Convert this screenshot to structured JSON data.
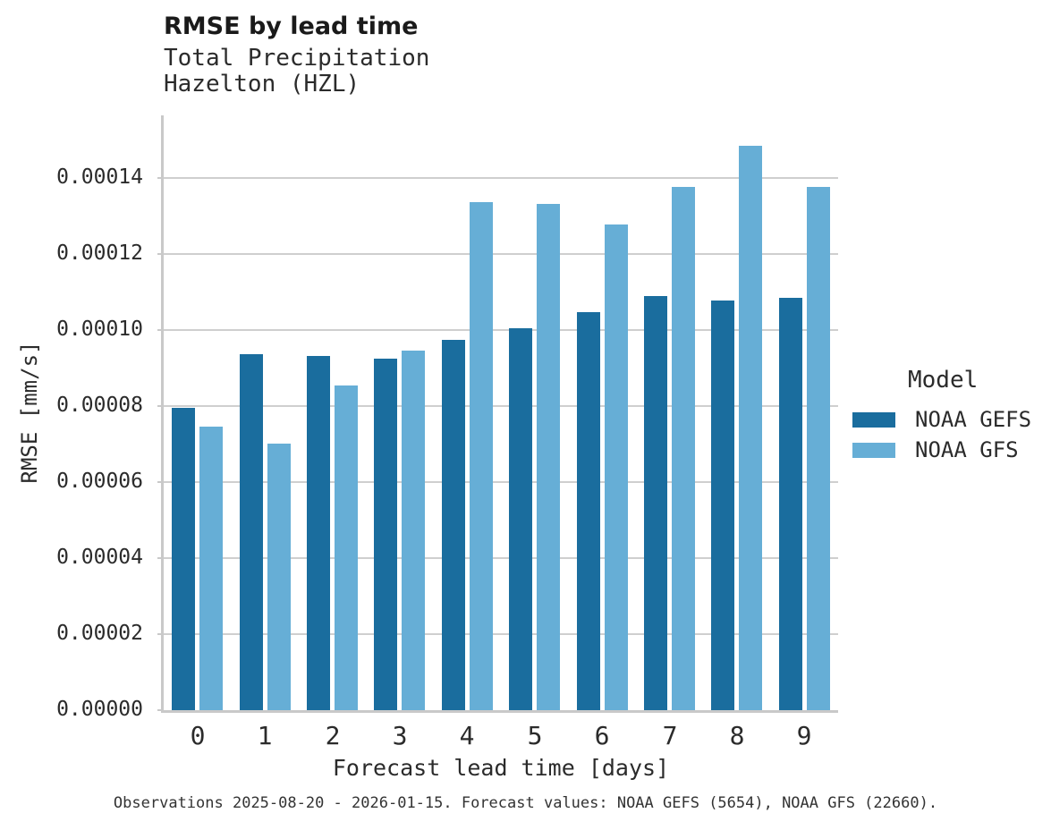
{
  "header": {
    "title": "RMSE by lead time",
    "subtitle_line1": "Total Precipitation",
    "subtitle_line2": "Hazelton (HZL)"
  },
  "legend": {
    "title": "Model",
    "items": [
      {
        "label": "NOAA GEFS",
        "color": "#1a6d9e"
      },
      {
        "label": "NOAA GFS",
        "color": "#66aed6"
      }
    ]
  },
  "footer": {
    "note": "Observations 2025-08-20 - 2026-01-15. Forecast values: NOAA GEFS (5654), NOAA GFS (22660)."
  },
  "chart_data": {
    "type": "bar",
    "title": "RMSE by lead time",
    "subtitle": "Total Precipitation",
    "station": "Hazelton (HZL)",
    "xlabel": "Forecast lead time [days]",
    "ylabel": "RMSE [mm/s]",
    "categories": [
      "0",
      "1",
      "2",
      "3",
      "4",
      "5",
      "6",
      "7",
      "8",
      "9"
    ],
    "series": [
      {
        "name": "NOAA GEFS",
        "color": "#1a6d9e",
        "values": [
          7.95e-05,
          9.37e-05,
          9.32e-05,
          9.24e-05,
          9.74e-05,
          0.0001006,
          0.0001047,
          0.000109,
          0.0001077,
          0.0001086
        ]
      },
      {
        "name": "NOAA GFS",
        "color": "#66aed6",
        "values": [
          7.47e-05,
          7.01e-05,
          8.54e-05,
          9.46e-05,
          0.0001337,
          0.0001333,
          0.0001278,
          0.0001377,
          0.0001486,
          0.0001377
        ]
      }
    ],
    "ylim": [
      0,
      0.0001565
    ],
    "yticks": [
      0.0,
      2e-05,
      4e-05,
      6e-05,
      8e-05,
      0.0001,
      0.00012,
      0.00014
    ],
    "ytick_labels": [
      "0.00000",
      "0.00002",
      "0.00004",
      "0.00006",
      "0.00008",
      "0.00010",
      "0.00012",
      "0.00014"
    ],
    "grid": "horizontal-only",
    "legend_position": "right",
    "legend_title": "Model"
  }
}
